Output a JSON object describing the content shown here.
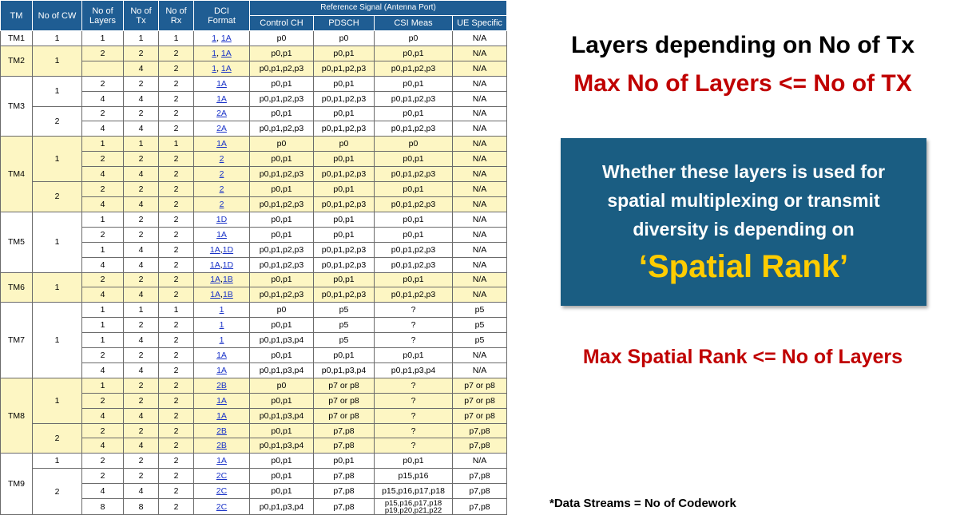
{
  "table": {
    "headers": {
      "tm": "TM",
      "cw": "No of CW",
      "layers": [
        "No of",
        "Layers"
      ],
      "tx": [
        "No of",
        "Tx"
      ],
      "rx": [
        "No of",
        "Rx"
      ],
      "dci": [
        "DCI",
        "Format"
      ],
      "ref_signal": "Reference Signal (Antenna Port)",
      "control": "Control CH",
      "pdsch": "PDSCH",
      "csi": "CSI Meas",
      "ue": "UE Specific"
    },
    "tms": [
      {
        "tm": "TM1",
        "style": "w",
        "groups": [
          {
            "cw": "1",
            "rows": [
              {
                "layers": "1",
                "tx": "1",
                "rx": "1",
                "dci": [
                  "1",
                  "1A"
                ],
                "ctrl": "p0",
                "pdsch": "p0",
                "csi": "p0",
                "ue": "N/A"
              }
            ]
          }
        ]
      },
      {
        "tm": "TM2",
        "style": "y",
        "groups": [
          {
            "cw": "1",
            "rows": [
              {
                "layers": "2",
                "tx": "2",
                "rx": "2",
                "dci": [
                  "1",
                  "1A"
                ],
                "ctrl": "p0,p1",
                "pdsch": "p0,p1",
                "csi": "p0,p1",
                "ue": "N/A"
              },
              {
                "layers": "",
                "tx": "4",
                "rx": "2",
                "dci": [
                  "1",
                  "1A"
                ],
                "ctrl": "p0,p1,p2,p3",
                "pdsch": "p0,p1,p2,p3",
                "csi": "p0,p1,p2,p3",
                "ue": "N/A"
              }
            ]
          }
        ]
      },
      {
        "tm": "TM3",
        "style": "w",
        "groups": [
          {
            "cw": "1",
            "rows": [
              {
                "layers": "2",
                "tx": "2",
                "rx": "2",
                "dci": [
                  "1A"
                ],
                "ctrl": "p0,p1",
                "pdsch": "p0,p1",
                "csi": "p0,p1",
                "ue": "N/A"
              },
              {
                "layers": "4",
                "tx": "4",
                "rx": "2",
                "dci": [
                  "1A"
                ],
                "ctrl": "p0,p1,p2,p3",
                "pdsch": "p0,p1,p2,p3",
                "csi": "p0,p1,p2,p3",
                "ue": "N/A"
              }
            ]
          },
          {
            "cw": "2",
            "rows": [
              {
                "layers": "2",
                "tx": "2",
                "rx": "2",
                "dci": [
                  "2A"
                ],
                "ctrl": "p0,p1",
                "pdsch": "p0,p1",
                "csi": "p0,p1",
                "ue": "N/A"
              },
              {
                "layers": "4",
                "tx": "4",
                "rx": "2",
                "dci": [
                  "2A"
                ],
                "ctrl": "p0,p1,p2,p3",
                "pdsch": "p0,p1,p2,p3",
                "csi": "p0,p1,p2,p3",
                "ue": "N/A"
              }
            ]
          }
        ]
      },
      {
        "tm": "TM4",
        "style": "y",
        "groups": [
          {
            "cw": "1",
            "rows": [
              {
                "layers": "1",
                "tx": "1",
                "rx": "1",
                "dci": [
                  "1A"
                ],
                "ctrl": "p0",
                "pdsch": "p0",
                "csi": "p0",
                "ue": "N/A"
              },
              {
                "layers": "2",
                "tx": "2",
                "rx": "2",
                "dci": [
                  "2"
                ],
                "ctrl": "p0,p1",
                "pdsch": "p0,p1",
                "csi": "p0,p1",
                "ue": "N/A"
              },
              {
                "layers": "4",
                "tx": "4",
                "rx": "2",
                "dci": [
                  "2"
                ],
                "ctrl": "p0,p1,p2,p3",
                "pdsch": "p0,p1,p2,p3",
                "csi": "p0,p1,p2,p3",
                "ue": "N/A"
              }
            ]
          },
          {
            "cw": "2",
            "rows": [
              {
                "layers": "2",
                "tx": "2",
                "rx": "2",
                "dci": [
                  "2"
                ],
                "ctrl": "p0,p1",
                "pdsch": "p0,p1",
                "csi": "p0,p1",
                "ue": "N/A"
              },
              {
                "layers": "4",
                "tx": "4",
                "rx": "2",
                "dci": [
                  "2"
                ],
                "ctrl": "p0,p1,p2,p3",
                "pdsch": "p0,p1,p2,p3",
                "csi": "p0,p1,p2,p3",
                "ue": "N/A"
              }
            ]
          }
        ]
      },
      {
        "tm": "TM5",
        "style": "w",
        "groups": [
          {
            "cw": "1",
            "rows": [
              {
                "layers": "1",
                "tx": "2",
                "rx": "2",
                "dci": [
                  "1D"
                ],
                "ctrl": "p0,p1",
                "pdsch": "p0,p1",
                "csi": "p0,p1",
                "ue": "N/A"
              },
              {
                "layers": "2",
                "tx": "2",
                "rx": "2",
                "dci": [
                  "1A"
                ],
                "ctrl": "p0,p1",
                "pdsch": "p0,p1",
                "csi": "p0,p1",
                "ue": "N/A"
              },
              {
                "layers": "1",
                "tx": "4",
                "rx": "2",
                "dci": [
                  "1A",
                  "1D"
                ],
                "ctrl": "p0,p1,p2,p3",
                "pdsch": "p0,p1,p2,p3",
                "csi": "p0,p1,p2,p3",
                "ue": "N/A"
              },
              {
                "layers": "4",
                "tx": "4",
                "rx": "2",
                "dci": [
                  "1A",
                  "1D"
                ],
                "ctrl": "p0,p1,p2,p3",
                "pdsch": "p0,p1,p2,p3",
                "csi": "p0,p1,p2,p3",
                "ue": "N/A"
              }
            ]
          }
        ]
      },
      {
        "tm": "TM6",
        "style": "y",
        "groups": [
          {
            "cw": "1",
            "rows": [
              {
                "layers": "2",
                "tx": "2",
                "rx": "2",
                "dci": [
                  "1A",
                  "1B"
                ],
                "ctrl": "p0,p1",
                "pdsch": "p0,p1",
                "csi": "p0,p1",
                "ue": "N/A"
              },
              {
                "layers": "4",
                "tx": "4",
                "rx": "2",
                "dci": [
                  "1A",
                  "1B"
                ],
                "ctrl": "p0,p1,p2,p3",
                "pdsch": "p0,p1,p2,p3",
                "csi": "p0,p1,p2,p3",
                "ue": "N/A"
              }
            ]
          }
        ]
      },
      {
        "tm": "TM7",
        "style": "w",
        "groups": [
          {
            "cw": "1",
            "rows": [
              {
                "layers": "1",
                "tx": "1",
                "rx": "1",
                "dci": [
                  "1"
                ],
                "ctrl": "p0",
                "pdsch": "p5",
                "csi": "?",
                "ue": "p5"
              },
              {
                "layers": "1",
                "tx": "2",
                "rx": "2",
                "dci": [
                  "1"
                ],
                "ctrl": "p0,p1",
                "pdsch": "p5",
                "csi": "?",
                "ue": "p5"
              },
              {
                "layers": "1",
                "tx": "4",
                "rx": "2",
                "dci": [
                  "1"
                ],
                "ctrl": "p0,p1,p3,p4",
                "pdsch": "p5",
                "csi": "?",
                "ue": "p5"
              },
              {
                "layers": "2",
                "tx": "2",
                "rx": "2",
                "dci": [
                  "1A"
                ],
                "ctrl": "p0,p1",
                "pdsch": "p0,p1",
                "csi": "p0,p1",
                "ue": "N/A"
              },
              {
                "layers": "4",
                "tx": "4",
                "rx": "2",
                "dci": [
                  "1A"
                ],
                "ctrl": "p0,p1,p3,p4",
                "pdsch": "p0,p1,p3,p4",
                "csi": "p0,p1,p3,p4",
                "ue": "N/A"
              }
            ]
          }
        ]
      },
      {
        "tm": "TM8",
        "style": "y",
        "groups": [
          {
            "cw": "1",
            "rows": [
              {
                "layers": "1",
                "tx": "2",
                "rx": "2",
                "dci": [
                  "2B"
                ],
                "ctrl": "p0",
                "pdsch": "p7 or p8",
                "csi": "?",
                "ue": "p7 or p8"
              },
              {
                "layers": "2",
                "tx": "2",
                "rx": "2",
                "dci": [
                  "1A"
                ],
                "ctrl": "p0,p1",
                "pdsch": "p7 or p8",
                "csi": "?",
                "ue": "p7 or p8"
              },
              {
                "layers": "4",
                "tx": "4",
                "rx": "2",
                "dci": [
                  "1A"
                ],
                "ctrl": "p0,p1,p3,p4",
                "pdsch": "p7 or p8",
                "csi": "?",
                "ue": "p7 or p8"
              }
            ]
          },
          {
            "cw": "2",
            "rows": [
              {
                "layers": "2",
                "tx": "2",
                "rx": "2",
                "dci": [
                  "2B"
                ],
                "ctrl": "p0,p1",
                "pdsch": "p7,p8",
                "csi": "?",
                "ue": "p7,p8"
              },
              {
                "layers": "4",
                "tx": "4",
                "rx": "2",
                "dci": [
                  "2B"
                ],
                "ctrl": "p0,p1,p3,p4",
                "pdsch": "p7,p8",
                "csi": "?",
                "ue": "p7,p8"
              }
            ]
          }
        ]
      },
      {
        "tm": "TM9",
        "style": "w",
        "groups": [
          {
            "cw": "1",
            "rows": [
              {
                "layers": "2",
                "tx": "2",
                "rx": "2",
                "dci": [
                  "1A"
                ],
                "ctrl": "p0,p1",
                "pdsch": "p0,p1",
                "csi": "p0,p1",
                "ue": "N/A"
              }
            ]
          },
          {
            "cw": "2",
            "rows": [
              {
                "layers": "2",
                "tx": "2",
                "rx": "2",
                "dci": [
                  "2C"
                ],
                "ctrl": "p0,p1",
                "pdsch": "p7,p8",
                "csi": "p15,p16",
                "ue": "p7,p8"
              },
              {
                "layers": "4",
                "tx": "4",
                "rx": "2",
                "dci": [
                  "2C"
                ],
                "ctrl": "p0,p1",
                "pdsch": "p7,p8",
                "csi": "p15,p16,p17,p18",
                "ue": "p7,p8"
              },
              {
                "layers": "8",
                "tx": "8",
                "rx": "2",
                "dci": [
                  "2C"
                ],
                "ctrl": "p0,p1,p3,p4",
                "pdsch": "p7,p8",
                "csi": "p15,p16,p17,p18 p19,p20,p21,p22",
                "ue": "p7,p8"
              }
            ]
          }
        ]
      }
    ]
  },
  "right": {
    "title1": "Layers depending on No of Tx",
    "title2": "Max No of Layers <= No of TX",
    "box_text": "Whether these layers is used for spatial multiplexing or transmit diversity is depending on",
    "box_highlight": "‘Spatial Rank’",
    "rank_rule": "Max Spatial Rank <= No of Layers",
    "footnote": "*Data Streams = No of Codework"
  },
  "colors": {
    "header_bg": "#1f5d93",
    "band_yellow": "#fdf6c3",
    "box_bg": "#1a5d82",
    "highlight": "#ffcc00",
    "red": "#c00000",
    "link": "#1a33c8"
  }
}
